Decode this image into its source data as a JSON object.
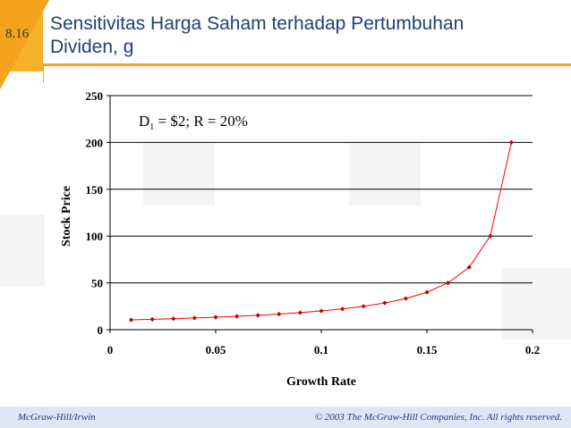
{
  "slide": {
    "number": "8.16",
    "title_line1": "Sensitivitas Harga Saham terhadap Pertumbuhan",
    "title_line2": "Dividen, g"
  },
  "footer": {
    "left": "McGraw-Hill/Irwin",
    "right": "© 2003 The McGraw-Hill Companies, Inc. All rights reserved."
  },
  "colors": {
    "accent": "#f5a21c",
    "title": "#1f3f78",
    "series": "#ff0000",
    "marker": "#c00000"
  },
  "chart_data": {
    "type": "line",
    "title": "",
    "xlabel": "Growth Rate",
    "ylabel": "Stock Price",
    "xlim": [
      0,
      0.2
    ],
    "ylim": [
      0,
      250
    ],
    "x_ticks": [
      0,
      0.05,
      0.1,
      0.15,
      0.2
    ],
    "x_tick_labels": [
      "0",
      "0.05",
      "0.1",
      "0.15",
      "0.2"
    ],
    "y_ticks": [
      0,
      50,
      100,
      150,
      200,
      250
    ],
    "y_tick_labels": [
      "0",
      "50",
      "100",
      "150",
      "200",
      "250"
    ],
    "grid": "horizontal",
    "annotation": {
      "text_main": "D",
      "text_sub": "1",
      "text_rest": " = $2; R = 20%"
    },
    "series": [
      {
        "x": [
          0.01,
          0.02,
          0.03,
          0.04,
          0.05,
          0.06,
          0.07,
          0.08,
          0.09,
          0.1,
          0.11,
          0.12,
          0.13,
          0.14,
          0.15,
          0.16,
          0.17,
          0.18,
          0.19
        ],
        "values": [
          10.53,
          11.11,
          11.76,
          12.5,
          13.33,
          14.29,
          15.38,
          16.67,
          18.18,
          20.0,
          22.22,
          25.0,
          28.57,
          33.33,
          40.0,
          50.0,
          66.67,
          100.0,
          200.0
        ]
      }
    ]
  }
}
